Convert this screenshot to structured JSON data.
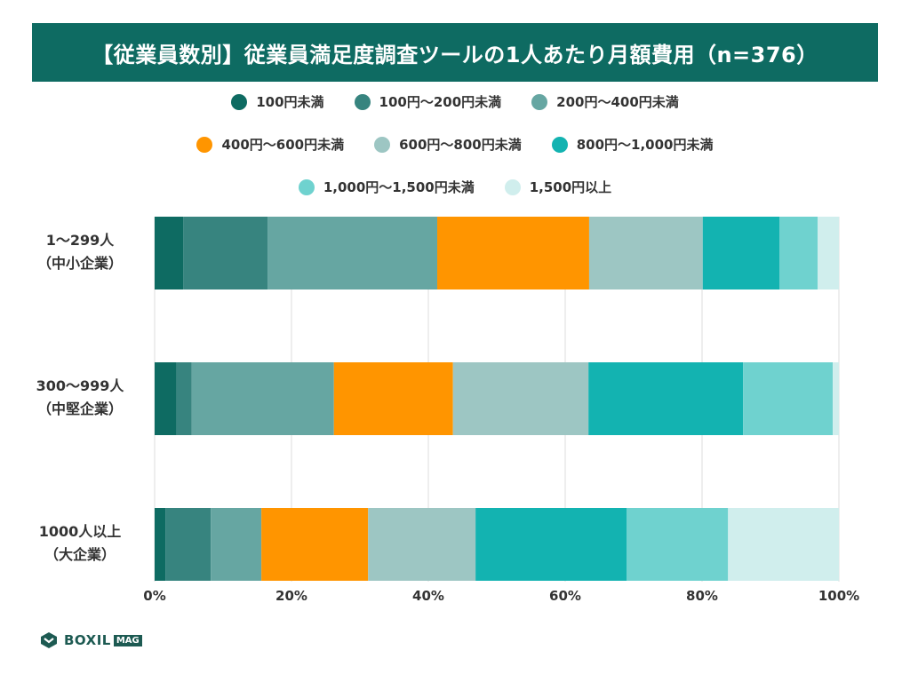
{
  "chart_data": {
    "type": "bar",
    "orientation": "horizontal",
    "stacked": true,
    "title": "【従業員数別】従業員満足度調査ツールの1人あたり月額費用（n=376）",
    "categories": [
      {
        "line1": "1〜299人",
        "line2": "（中小企業）"
      },
      {
        "line1": "300〜999人",
        "line2": "（中堅企業）"
      },
      {
        "line1": "1000人以上",
        "line2": "（大企業）"
      }
    ],
    "series": [
      {
        "name": "100円未満",
        "color": "#0e6b62",
        "values": [
          4.2,
          3.2,
          1.6
        ]
      },
      {
        "name": "100円〜200円未満",
        "color": "#37847f",
        "values": [
          12.3,
          2.2,
          6.6
        ]
      },
      {
        "name": "200円〜400円未満",
        "color": "#66a6a2",
        "values": [
          24.8,
          20.8,
          7.4
        ]
      },
      {
        "name": "400円〜600円未満",
        "color": "#ff9500",
        "values": [
          22.2,
          17.4,
          15.6
        ]
      },
      {
        "name": "600円〜800円未満",
        "color": "#9dc6c3",
        "values": [
          16.6,
          19.8,
          15.7
        ]
      },
      {
        "name": "800円〜1,000円未満",
        "color": "#13b3b1",
        "values": [
          11.2,
          22.6,
          22.1
        ]
      },
      {
        "name": "1,000円〜1,500円未満",
        "color": "#6fd2cf",
        "values": [
          5.6,
          13.1,
          14.8
        ]
      },
      {
        "name": "1,500円以上",
        "color": "#d0eeed",
        "values": [
          3.1,
          0.9,
          16.2
        ]
      }
    ],
    "xlim": [
      0,
      100
    ],
    "xticks": [
      "0%",
      "20%",
      "40%",
      "60%",
      "80%",
      "100%"
    ],
    "grid": true,
    "legend_position": "top"
  },
  "brand": {
    "name": "BOXIL",
    "sub": "MAG"
  }
}
